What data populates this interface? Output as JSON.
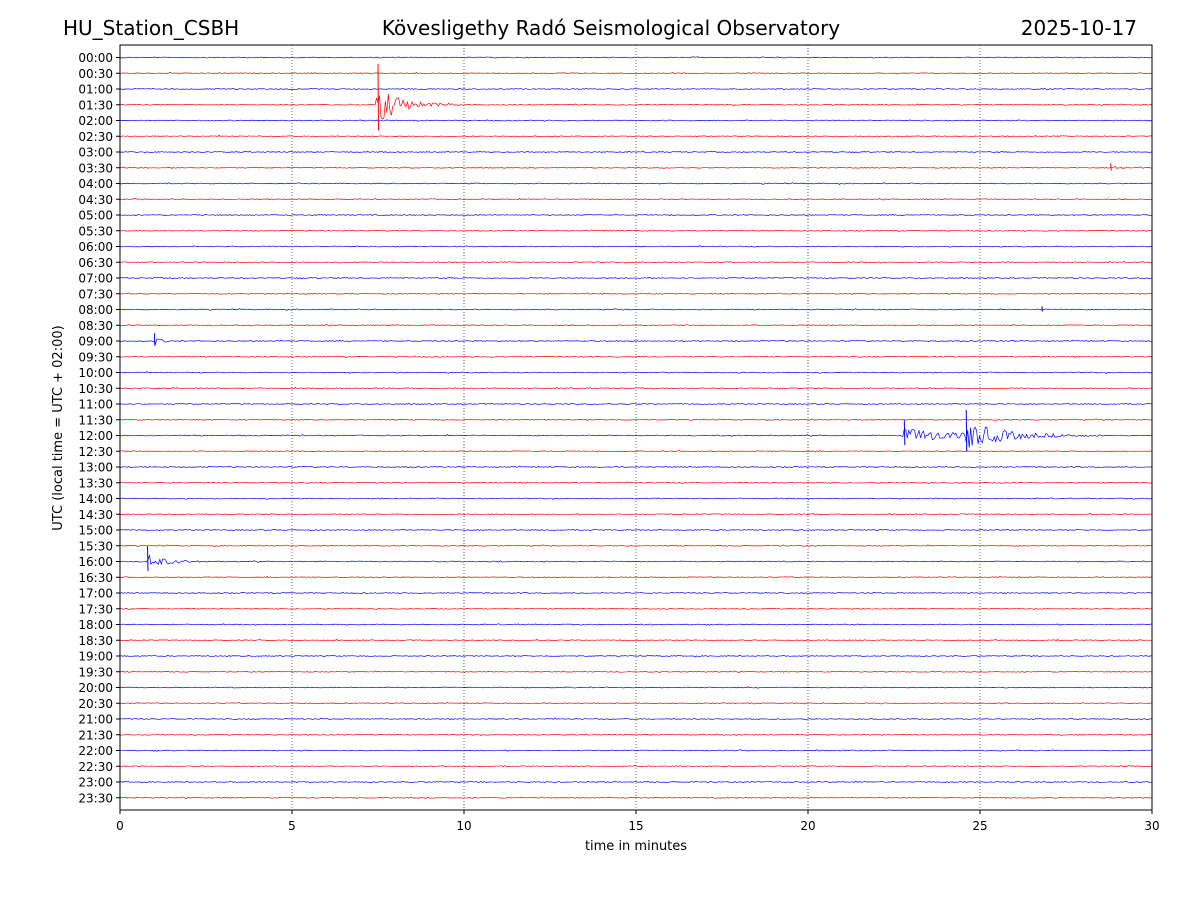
{
  "header": {
    "station": "HU_Station_CSBH",
    "observatory": "Kövesligethy Radó Seismological Observatory",
    "date": "2025-10-17"
  },
  "chart_data": {
    "type": "line",
    "title": "Kövesligethy Radó Seismological Observatory",
    "xlabel": "time in minutes",
    "ylabel": "UTC (local time = UTC + 02:00)",
    "xlim": [
      0,
      30
    ],
    "x_ticks": [
      0,
      5,
      10,
      15,
      20,
      25,
      30
    ],
    "row_labels": [
      "00:00",
      "00:30",
      "01:00",
      "01:30",
      "02:00",
      "02:30",
      "03:00",
      "03:30",
      "04:00",
      "04:30",
      "05:00",
      "05:30",
      "06:00",
      "06:30",
      "07:00",
      "07:30",
      "08:00",
      "08:30",
      "09:00",
      "09:30",
      "10:00",
      "10:30",
      "11:00",
      "11:30",
      "12:00",
      "12:30",
      "13:00",
      "13:30",
      "14:00",
      "14:30",
      "15:00",
      "15:30",
      "16:00",
      "16:30",
      "17:00",
      "17:30",
      "18:00",
      "18:30",
      "19:00",
      "19:30",
      "20:00",
      "20:30",
      "21:00",
      "21:30",
      "22:00",
      "22:30",
      "23:00",
      "23:30"
    ],
    "grid": "vertical dotted",
    "colors": {
      "even_rows": "#0000ff",
      "odd_rows": "#ff0000"
    },
    "events": [
      {
        "row": "01:30",
        "minute": 7.5,
        "amplitude": 3.2,
        "duration": 2.0,
        "color": "#ff0000"
      },
      {
        "row": "03:30",
        "minute": 28.8,
        "amplitude": 0.35,
        "duration": 1.0,
        "color": "#ff0000"
      },
      {
        "row": "09:00",
        "minute": 1.0,
        "amplitude": 0.6,
        "duration": 0.6,
        "color": "#0000ff"
      },
      {
        "row": "08:00",
        "minute": 26.8,
        "amplitude": 0.25,
        "duration": 0.5,
        "color": "#0000ff"
      },
      {
        "row": "12:00",
        "minute": 22.8,
        "amplitude": 1.2,
        "duration": 5.0,
        "color": "#0000ff"
      },
      {
        "row": "12:00",
        "minute": 24.6,
        "amplitude": 2.0,
        "duration": 3.0,
        "color": "#0000ff"
      },
      {
        "row": "16:00",
        "minute": 0.8,
        "amplitude": 1.2,
        "duration": 1.5,
        "color": "#0000ff"
      }
    ]
  }
}
